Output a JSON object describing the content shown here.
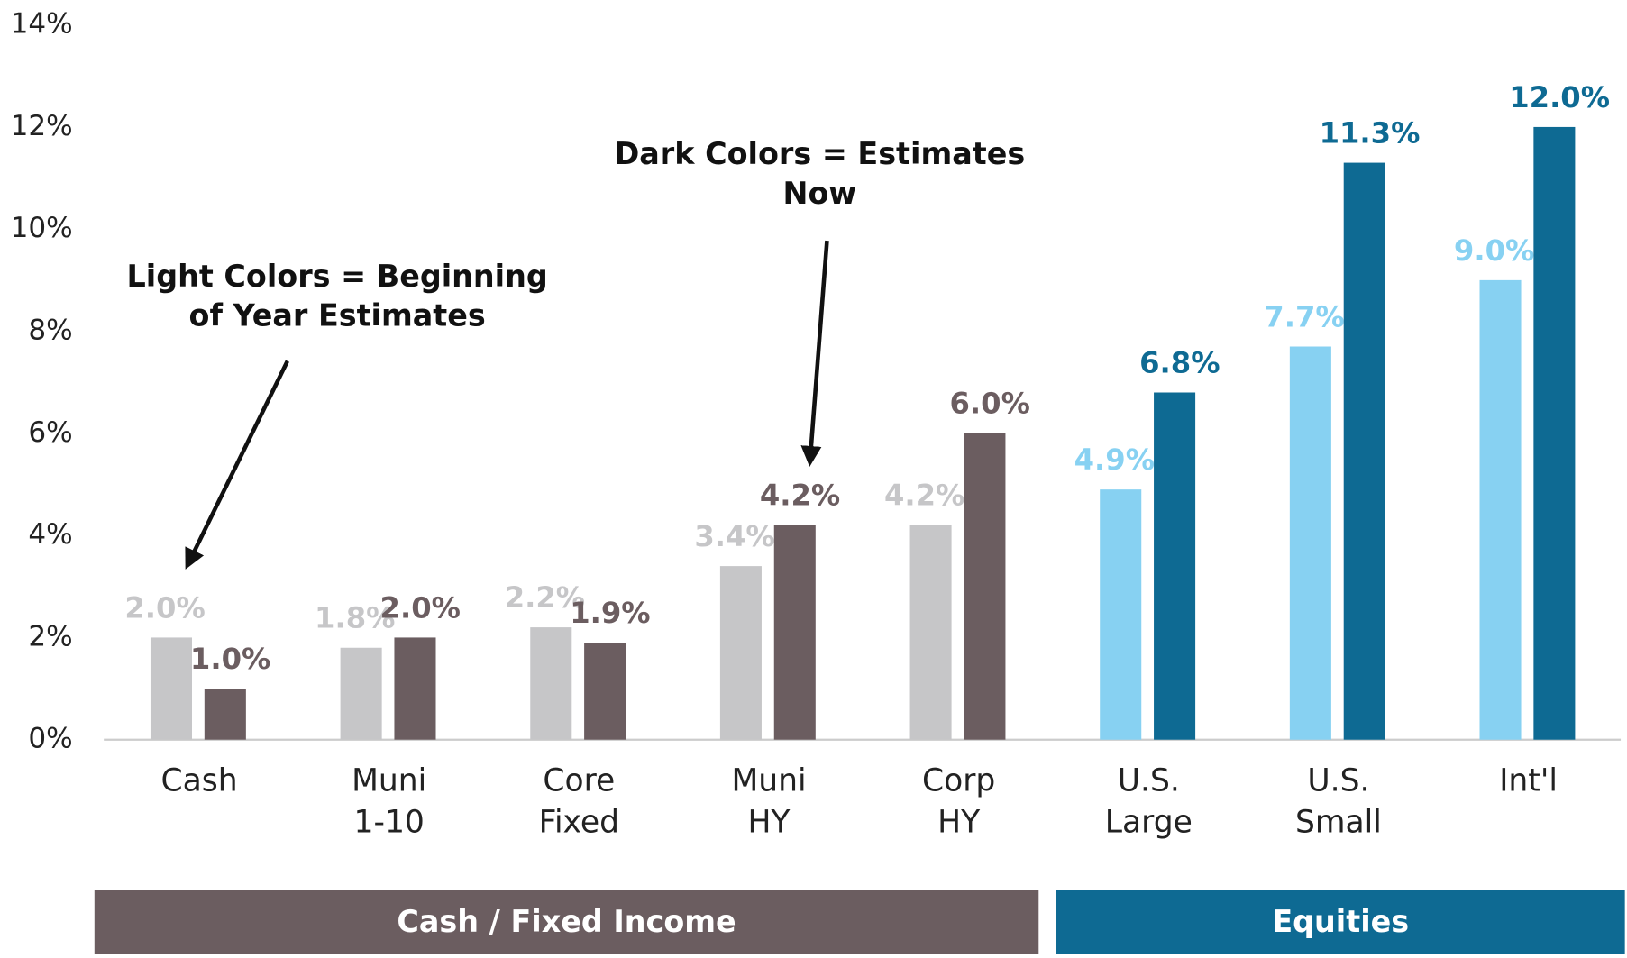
{
  "chart_data": {
    "type": "bar",
    "categories": [
      [
        "Cash"
      ],
      [
        "Muni",
        "1-10"
      ],
      [
        "Core",
        "Fixed"
      ],
      [
        "Muni",
        "HY"
      ],
      [
        "Corp",
        "HY"
      ],
      [
        "U.S.",
        "Large"
      ],
      [
        "U.S.",
        "Small"
      ],
      [
        "Int'l"
      ]
    ],
    "series": [
      {
        "colors": [
          "#c6c6c8",
          "#c6c6c8",
          "#c6c6c8",
          "#c6c6c8",
          "#c6c6c8",
          "#87d1f2",
          "#87d1f2",
          "#87d1f2"
        ],
        "values": [
          2.0,
          1.8,
          2.2,
          3.4,
          4.2,
          4.9,
          7.7,
          9.0
        ],
        "value_labels": [
          "2.0%",
          "1.8%",
          "2.2%",
          "3.4%",
          "4.2%",
          "4.9%",
          "7.7%",
          "9.0%"
        ]
      },
      {
        "colors": [
          "#6b5d60",
          "#6b5d60",
          "#6b5d60",
          "#6b5d60",
          "#6b5d60",
          "#0e6a93",
          "#0e6a93",
          "#0e6a93"
        ],
        "values": [
          1.0,
          2.0,
          1.9,
          4.2,
          6.0,
          6.8,
          11.3,
          12.0
        ],
        "value_labels": [
          "1.0%",
          "2.0%",
          "1.9%",
          "4.2%",
          "6.0%",
          "6.8%",
          "11.3%",
          "12.0%"
        ]
      }
    ],
    "ylim": [
      0,
      14
    ],
    "yticks": [
      {
        "value": 0,
        "label": "0%"
      },
      {
        "value": 2,
        "label": "2%"
      },
      {
        "value": 4,
        "label": "4%"
      },
      {
        "value": 6,
        "label": "6%"
      },
      {
        "value": 8,
        "label": "8%"
      },
      {
        "value": 10,
        "label": "10%"
      },
      {
        "value": 12,
        "label": "12%"
      },
      {
        "value": 14,
        "label": "14%"
      }
    ],
    "annotations": [
      {
        "lines": [
          "Light Colors = Beginning",
          "of Year Estimates"
        ]
      },
      {
        "lines": [
          "Dark Colors = Estimates",
          "Now"
        ]
      }
    ],
    "groups": [
      {
        "label": "Cash / Fixed Income",
        "color": "#6b5d60"
      },
      {
        "label": "Equities",
        "color": "#0e6a93"
      }
    ]
  }
}
